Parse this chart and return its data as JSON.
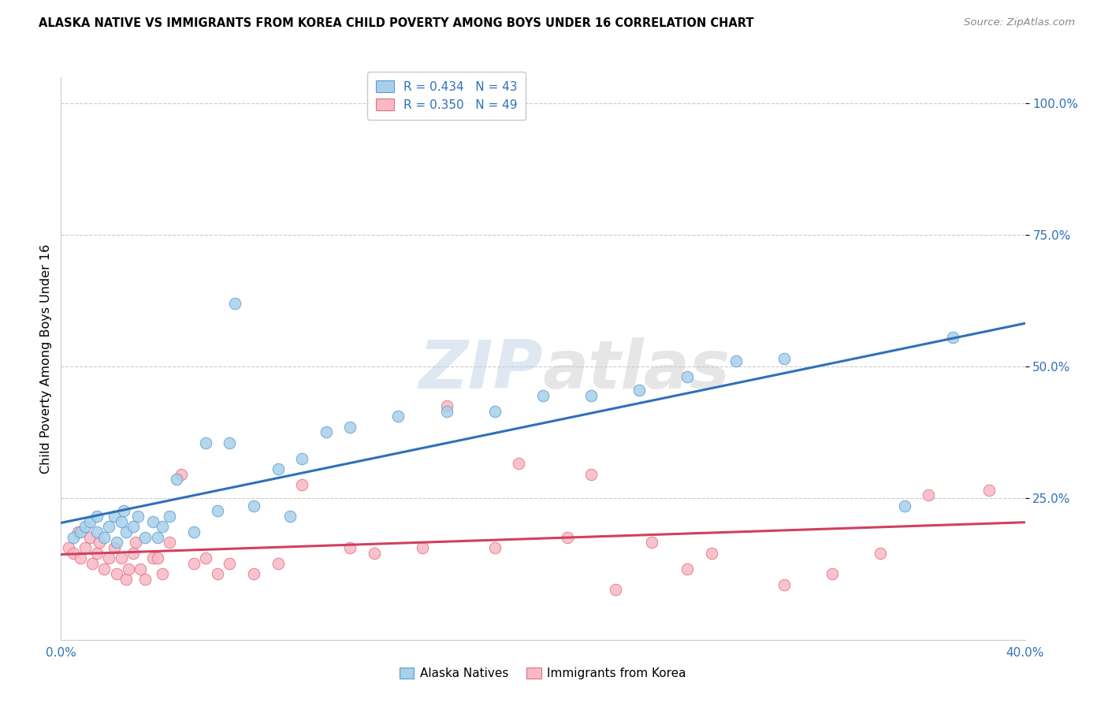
{
  "title": "ALASKA NATIVE VS IMMIGRANTS FROM KOREA CHILD POVERTY AMONG BOYS UNDER 16 CORRELATION CHART",
  "source": "Source: ZipAtlas.com",
  "ylabel": "Child Poverty Among Boys Under 16",
  "r_alaska": 0.434,
  "n_alaska": 43,
  "r_korea": 0.35,
  "n_korea": 49,
  "alaska_color": "#a8d0e8",
  "alaska_edge": "#5b9bd5",
  "korea_color": "#f9b8c4",
  "korea_edge": "#e07080",
  "alaska_line_color": "#3070b8",
  "korea_line_color": "#d04060",
  "xlim": [
    0.0,
    0.4
  ],
  "ylim": [
    -0.02,
    1.05
  ],
  "background_color": "#ffffff",
  "alaska_x": [
    0.005,
    0.008,
    0.01,
    0.012,
    0.015,
    0.015,
    0.018,
    0.02,
    0.022,
    0.023,
    0.025,
    0.026,
    0.027,
    0.03,
    0.032,
    0.035,
    0.038,
    0.04,
    0.042,
    0.045,
    0.048,
    0.055,
    0.06,
    0.065,
    0.07,
    0.072,
    0.08,
    0.09,
    0.095,
    0.1,
    0.11,
    0.12,
    0.14,
    0.16,
    0.18,
    0.2,
    0.22,
    0.24,
    0.26,
    0.28,
    0.3,
    0.35,
    0.37
  ],
  "alaska_y": [
    0.175,
    0.185,
    0.195,
    0.205,
    0.185,
    0.215,
    0.175,
    0.195,
    0.215,
    0.165,
    0.205,
    0.225,
    0.185,
    0.195,
    0.215,
    0.175,
    0.205,
    0.175,
    0.195,
    0.215,
    0.285,
    0.185,
    0.355,
    0.225,
    0.355,
    0.62,
    0.235,
    0.305,
    0.215,
    0.325,
    0.375,
    0.385,
    0.405,
    0.415,
    0.415,
    0.445,
    0.445,
    0.455,
    0.48,
    0.51,
    0.515,
    0.235,
    0.555
  ],
  "korea_x": [
    0.003,
    0.005,
    0.007,
    0.008,
    0.01,
    0.012,
    0.013,
    0.015,
    0.016,
    0.018,
    0.02,
    0.022,
    0.023,
    0.025,
    0.027,
    0.028,
    0.03,
    0.031,
    0.033,
    0.035,
    0.038,
    0.04,
    0.042,
    0.045,
    0.05,
    0.055,
    0.06,
    0.065,
    0.07,
    0.08,
    0.09,
    0.1,
    0.12,
    0.13,
    0.15,
    0.16,
    0.18,
    0.19,
    0.21,
    0.22,
    0.23,
    0.245,
    0.26,
    0.27,
    0.3,
    0.32,
    0.34,
    0.36,
    0.385
  ],
  "korea_y": [
    0.155,
    0.145,
    0.185,
    0.135,
    0.155,
    0.175,
    0.125,
    0.145,
    0.165,
    0.115,
    0.135,
    0.155,
    0.105,
    0.135,
    0.095,
    0.115,
    0.145,
    0.165,
    0.115,
    0.095,
    0.135,
    0.135,
    0.105,
    0.165,
    0.295,
    0.125,
    0.135,
    0.105,
    0.125,
    0.105,
    0.125,
    0.275,
    0.155,
    0.145,
    0.155,
    0.425,
    0.155,
    0.315,
    0.175,
    0.295,
    0.075,
    0.165,
    0.115,
    0.145,
    0.085,
    0.105,
    0.145,
    0.255,
    0.265
  ]
}
